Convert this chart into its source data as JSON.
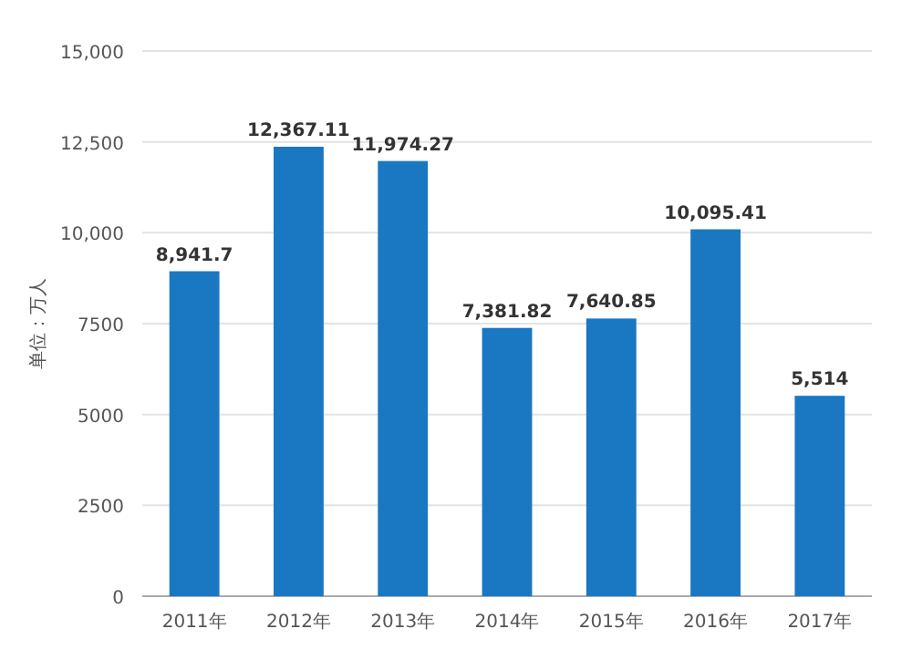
{
  "chart_data": {
    "type": "bar",
    "ylabel": "单位：万人",
    "categories": [
      "2011年",
      "2012年",
      "2013年",
      "2014年",
      "2015年",
      "2016年",
      "2017年"
    ],
    "values": [
      8941.7,
      12367.11,
      11974.27,
      7381.82,
      7640.85,
      10095.41,
      5514
    ],
    "value_labels": [
      "8,941.7",
      "12,367.11",
      "11,974.27",
      "7,381.82",
      "7,640.85",
      "10,095.41",
      "5,514"
    ],
    "color": "#1a78c2",
    "ylim": [
      0,
      15000
    ],
    "yticks": [
      0,
      2500,
      5000,
      {
        "value": 7500,
        "label": "7500"
      },
      {
        "value": 10000,
        "label": "10,000"
      },
      {
        "value": 12500,
        "label": "12,500"
      },
      {
        "value": 15000,
        "label": "15,000"
      }
    ],
    "grid": "y"
  }
}
